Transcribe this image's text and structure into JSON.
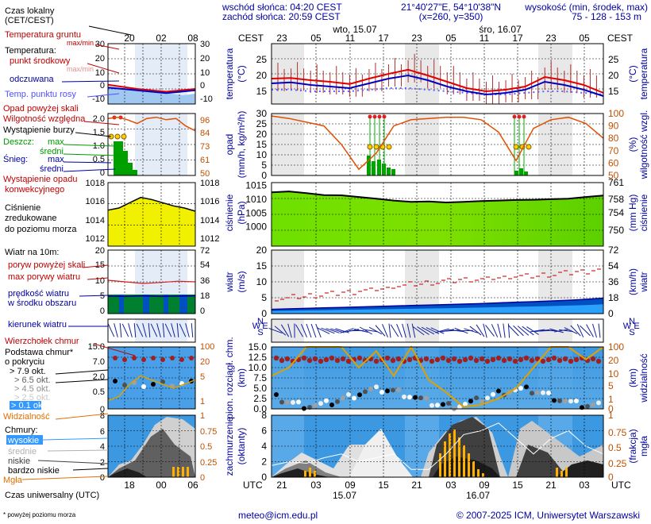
{
  "header": {
    "sunrise": "wschód słońca: 04:20 CEST",
    "sunset": "zachód słońca: 20:59 CEST",
    "coords": "21°40'27\"E, 54°10'38\"N",
    "grid": "(x=260, y=350)",
    "height_label": "wysokość (min, środek, max)",
    "height_values": "75 - 128 - 153 m"
  },
  "time": {
    "local_label": "CEST",
    "local_ticks": [
      "23",
      "05",
      "11",
      "17",
      "23",
      "05",
      "11",
      "17",
      "23",
      "05"
    ],
    "days_top": [
      "wto, 15.07",
      "śro, 16.07"
    ],
    "utc_label": "UTC",
    "utc_ticks": [
      "21",
      "03",
      "09",
      "15",
      "21",
      "03",
      "09",
      "15",
      "21",
      "03"
    ],
    "days_bottom": [
      "15.07",
      "16.07"
    ]
  },
  "legend": {
    "time_local": "Czas lokalny",
    "time_local2": "(CET/CEST)",
    "local_mini_ticks": [
      "20",
      "02",
      "08"
    ],
    "soil_temp": "Temperatura gruntu",
    "maxmin": "max/min",
    "temp": "Temperatura:",
    "midpoint": "punkt środkowy",
    "maxmin2": "max/min",
    "perceived": "odczuwana",
    "dewpoint": "Temp. punktu rosy",
    "precip_above": "Opad powyżej skali",
    "rel_hum": "Wilgotność względna",
    "storm": "Wystąpienie burzy",
    "rain": "Deszcz:",
    "max": "max",
    "mean": "średni",
    "snow": "Śnieg:",
    "conv1": "Wystąpienie opadu",
    "conv2": "konwekcyjnego",
    "pressure1": "Ciśnienie",
    "pressure2": "zredukowane",
    "pressure3": "do poziomu morza",
    "wind10": "Wiatr na 10m:",
    "gust_above": "poryw powyżej skali",
    "max_gust": "max porywy wiatru",
    "wind_speed": "prędkość wiatru",
    "wind_area": "w środku obszaru",
    "wind_dir": "kierunek wiatru",
    "cloud_top": "Wierzchołek chmur",
    "cloud_base": "Podstawa chmur*",
    "cover": "o pokryciu",
    "okt79": "> 7.9 okt.",
    "okt65": "> 6.5 okt.",
    "okt45": "> 4.5 okt.",
    "okt25": "> 2.5 okt.",
    "okt01": "> 0.1 okt.",
    "visibility": "Widzialność",
    "clouds": "Chmury:",
    "high": "wysokie",
    "middle": "średnie",
    "low": "niskie",
    "very_low": "bardzo niskie",
    "fog": "Mgła",
    "utc_mini_ticks": [
      "18",
      "00",
      "06"
    ],
    "utc": "Czas uniwersalny (UTC)",
    "footnote": "* powyżej poziomu morza"
  },
  "axes": {
    "temp_left": "temperatura",
    "temp_left_unit": "(°C)",
    "temp_right": "temperatura",
    "temp_right_unit": "(°C)",
    "precip_left1": "opad",
    "precip_left2": "(mm/h, kg/m²/h)",
    "precip_right1": "(%)",
    "precip_right2": "wilgotność wzgl.",
    "pres_left1": "ciśnienie",
    "pres_left2": "(hPa)",
    "pres_right1": "(mm Hg)",
    "pres_right2": "ciśnienie",
    "wind_left1": "wiatr",
    "wind_left2": "(m/s)",
    "wind_right1": "(km/h)",
    "wind_right2": "wiatr",
    "cloud_left1": "pion. rozciągł. chm.",
    "cloud_left2": "(km)",
    "cloud_right1": "(km)",
    "cloud_right2": "widzialność",
    "cov_left1": "zachmurzenie",
    "cov_left2": "(oktanty)",
    "cov_right1": "(frakcja)",
    "cov_right2": "mgła",
    "compass_n": "N",
    "compass_s": "S",
    "compass_w": "W",
    "compass_e": "E"
  },
  "chart_data": [
    {
      "type": "line",
      "title": "temperatura",
      "ylabel": "(°C)",
      "ylim": [
        11,
        30
      ],
      "yticks": [
        15,
        20,
        25
      ],
      "x_utc_hours": [
        18,
        21,
        24,
        27,
        30,
        33,
        36,
        39,
        42,
        45,
        48,
        51,
        54,
        57,
        60,
        63,
        66,
        69
      ],
      "series": [
        {
          "name": "punkt środkowy",
          "values": [
            19,
            19.2,
            18.5,
            18,
            17.3,
            19,
            20.5,
            21.8,
            20,
            18,
            16,
            15,
            15.5,
            16.5,
            19.5,
            18.5,
            17,
            14.5
          ]
        },
        {
          "name": "odczuwana",
          "values": [
            17.5,
            17.8,
            17,
            16.5,
            16,
            17.5,
            19,
            20,
            18.5,
            16.5,
            15,
            14,
            14.5,
            15.5,
            18,
            17,
            15.5,
            13.5
          ]
        },
        {
          "name": "Temp. punktu rosy",
          "values": [
            15.5,
            15.5,
            15,
            15,
            15,
            15.5,
            16,
            16,
            15.5,
            15,
            14.5,
            14,
            14,
            14.5,
            15,
            15,
            14.5,
            14
          ]
        }
      ]
    },
    {
      "type": "bar",
      "title": "opad",
      "ylabel": "(mm/h, kg/m²/h)",
      "ylim": [
        0,
        30
      ],
      "yticks": [
        0,
        5,
        10,
        15,
        20,
        25,
        30
      ],
      "y2ticks": [
        50,
        60,
        70,
        80,
        90,
        100
      ],
      "series": [
        {
          "name": "Wilgotność względna",
          "values": [
            98,
            96,
            93,
            90,
            75,
            55,
            68,
            90,
            95,
            96,
            97,
            97,
            95,
            85,
            62,
            88,
            95,
            97,
            92,
            80
          ]
        }
      ]
    },
    {
      "type": "area",
      "title": "ciśnienie",
      "ylabel": "(hPa)",
      "ylim": [
        990,
        1015
      ],
      "yticks": [
        1000,
        1005,
        1010,
        1015
      ],
      "y2ticks": [
        750,
        754,
        758,
        761
      ],
      "series": [
        {
          "name": "Ciśnienie",
          "values": [
            1012.5,
            1012.8,
            1012.2,
            1011.5,
            1011.4,
            1010.8,
            1010.2,
            1009.5,
            1009.0,
            1009.2,
            1008.8,
            1009.0,
            1009.3,
            1009.5,
            1009.7,
            1009.8,
            1010.0,
            1010.2,
            1010.8,
            1011.3
          ]
        }
      ]
    },
    {
      "type": "area",
      "title": "wiatr",
      "ylabel": "(m/s)",
      "ylim": [
        0,
        20
      ],
      "yticks": [
        0,
        5,
        10,
        15,
        20
      ],
      "y2ticks": [
        0,
        18,
        36,
        54,
        72
      ],
      "series": [
        {
          "name": "prędkość wiatru",
          "values": [
            1.8,
            2.0,
            2.2,
            2.4,
            2.6,
            2.8,
            3.0,
            3.2,
            3.4,
            3.6,
            3.8,
            4.0,
            4.2,
            4.5,
            4.8,
            5.0,
            5.3,
            5.6,
            6.0,
            6.5
          ]
        },
        {
          "name": "max porywy wiatru",
          "values": [
            4,
            4.5,
            5,
            5.5,
            6,
            6.5,
            7,
            8,
            8.5,
            9,
            9.5,
            10,
            10,
            10.5,
            11,
            11,
            11.5,
            12,
            12.5,
            13
          ]
        }
      ]
    },
    {
      "type": "line",
      "title": "pion. rozciągł. chm.",
      "ylabel": "(km)",
      "ylim": [
        0,
        15
      ],
      "yticks": [
        0,
        2.5,
        5,
        7.5,
        10,
        12.5,
        15
      ],
      "y2ticks": [
        0,
        1,
        5,
        10,
        20,
        100
      ],
      "series": [
        {
          "name": "Widzialność",
          "values": [
            16,
            20,
            30,
            30,
            30,
            20,
            28,
            16,
            30,
            14,
            8,
            1,
            2,
            5,
            10,
            20,
            30,
            30,
            24,
            30
          ]
        }
      ]
    },
    {
      "type": "area",
      "title": "zachmurzenie",
      "ylabel": "(oktanty)",
      "ylim": [
        0,
        8
      ],
      "yticks": [
        0,
        2,
        4,
        6,
        8
      ],
      "y2ticks": [
        0,
        0.25,
        0.5,
        0.75,
        1
      ],
      "series": [
        {
          "name": "Mgła",
          "values": [
            0,
            0.15,
            0.3,
            0.1,
            0,
            0,
            0,
            0,
            0,
            0.1,
            0.6,
            0.9,
            0.7,
            0.5,
            0.1,
            0,
            0,
            0.3,
            0.2,
            0.1
          ]
        }
      ]
    }
  ]
}
